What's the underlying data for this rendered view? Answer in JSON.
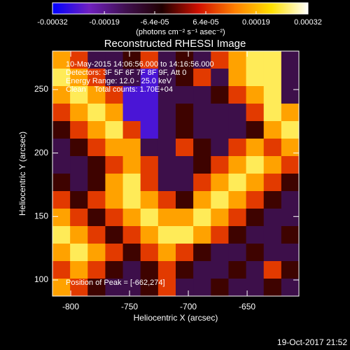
{
  "chart_data": {
    "type": "heatmap",
    "title": "Reconstructed RHESSI Image",
    "x_label": "Heliocentric X (arcsec)",
    "y_label": "Heliocentric Y (arcsec)",
    "colorbar_label": "(photons cm⁻² s⁻¹ asec⁻²)",
    "annotations": [
      "10-May-2015 14:06:56.000 to 14:16:56.000",
      "Detectors: 3F 5F 6F 7F 8F 9F, Att 0",
      "Energy Range: 12.0 - 25.0 keV",
      "Clean    Total counts: 1.70E+04"
    ],
    "peak_label": "Position of Peak = [-662,274]",
    "footer": "19-Oct-2017 21:52",
    "xlim": [
      -815.5,
      -606
    ],
    "xticks": [
      -800,
      -750,
      -700,
      -650
    ],
    "ylim": [
      87.3,
      280.3
    ],
    "yticks": [
      100,
      150,
      200,
      250
    ],
    "zlim": [
      -0.00032,
      0.00032
    ],
    "zticks": [
      -0.00032,
      -0.00019,
      {
        "value": -6.4e-05,
        "label": "-6.4e-05"
      },
      {
        "value": 6.4e-05,
        "label": "6.4e-05"
      },
      0.00019,
      0.00032
    ],
    "colormap": [
      "#0000ff",
      "#7020c0",
      "#401050",
      "#200000",
      "#d01000",
      "#ff8000",
      "#ffe000",
      "#ffffff"
    ],
    "z": [
      [
        0.00017,
        8e-05,
        -0.00013,
        -0.00013,
        -3e-05,
        8e-05,
        -0.00013,
        -3e-05,
        -0.00013,
        8e-05,
        0.00017,
        0.00026,
        0.00026,
        -0.00013
      ],
      [
        0.00026,
        0.00017,
        8e-05,
        -0.00013,
        -0.00013,
        -0.00026,
        -0.00013,
        -3e-05,
        8e-05,
        -0.00013,
        0.00017,
        0.00026,
        0.00026,
        -0.00013
      ],
      [
        0.00017,
        0.00026,
        0.00017,
        8e-05,
        -0.00026,
        -0.00026,
        -0.00013,
        -0.00013,
        -0.00013,
        -3e-05,
        8e-05,
        0.00017,
        0.00026,
        -0.00013
      ],
      [
        8e-05,
        0.00017,
        0.00026,
        0.00017,
        -0.00026,
        -0.00026,
        -0.00013,
        -3e-05,
        -0.00013,
        -0.00013,
        -0.00013,
        8e-05,
        0.00026,
        0.00017
      ],
      [
        -3e-05,
        8e-05,
        0.00017,
        0.00026,
        8e-05,
        -0.00026,
        -0.00013,
        -3e-05,
        -0.00013,
        -0.00013,
        -0.00013,
        -3e-05,
        0.00017,
        0.00026
      ],
      [
        -0.00013,
        -3e-05,
        8e-05,
        0.00017,
        0.00017,
        -0.00013,
        -0.00013,
        8e-05,
        -3e-05,
        -0.00013,
        8e-05,
        0.00017,
        8e-05,
        0.00017
      ],
      [
        -0.00013,
        -0.00013,
        -3e-05,
        8e-05,
        0.00017,
        8e-05,
        -0.00013,
        -0.00013,
        -3e-05,
        8e-05,
        0.00017,
        0.00026,
        0.00017,
        8e-05
      ],
      [
        -3e-05,
        -0.00013,
        -3e-05,
        0.00017,
        0.00026,
        8e-05,
        -0.00013,
        -0.00013,
        8e-05,
        0.00017,
        0.00026,
        0.00017,
        8e-05,
        -3e-05
      ],
      [
        8e-05,
        -3e-05,
        8e-05,
        0.00017,
        0.00026,
        0.00017,
        8e-05,
        -3e-05,
        0.00017,
        0.00026,
        0.00017,
        8e-05,
        -3e-05,
        -0.00013
      ],
      [
        0.00017,
        8e-05,
        -3e-05,
        8e-05,
        0.00017,
        0.00026,
        0.00017,
        0.00017,
        0.00026,
        0.00017,
        8e-05,
        -3e-05,
        -0.00013,
        -0.00013
      ],
      [
        0.00026,
        0.00017,
        8e-05,
        -3e-05,
        8e-05,
        0.00017,
        0.00026,
        0.00026,
        0.00017,
        8e-05,
        -3e-05,
        -0.00013,
        -0.00013,
        -3e-05
      ],
      [
        0.00017,
        0.00026,
        0.00017,
        8e-05,
        -3e-05,
        8e-05,
        0.00017,
        8e-05,
        -3e-05,
        -0.00013,
        -0.00013,
        -3e-05,
        -0.00013,
        -0.00013
      ],
      [
        8e-05,
        0.00017,
        8e-05,
        -3e-05,
        -0.00013,
        -3e-05,
        8e-05,
        -3e-05,
        -0.00013,
        -0.00013,
        -3e-05,
        -0.00013,
        8e-05,
        -3e-05
      ],
      [
        0.00017,
        8e-05,
        -3e-05,
        -0.00013,
        -0.00013,
        -3e-05,
        8e-05,
        -0.00013,
        -0.00013,
        -3e-05,
        -0.00013,
        -0.00013,
        -3e-05,
        -0.00013
      ]
    ]
  }
}
